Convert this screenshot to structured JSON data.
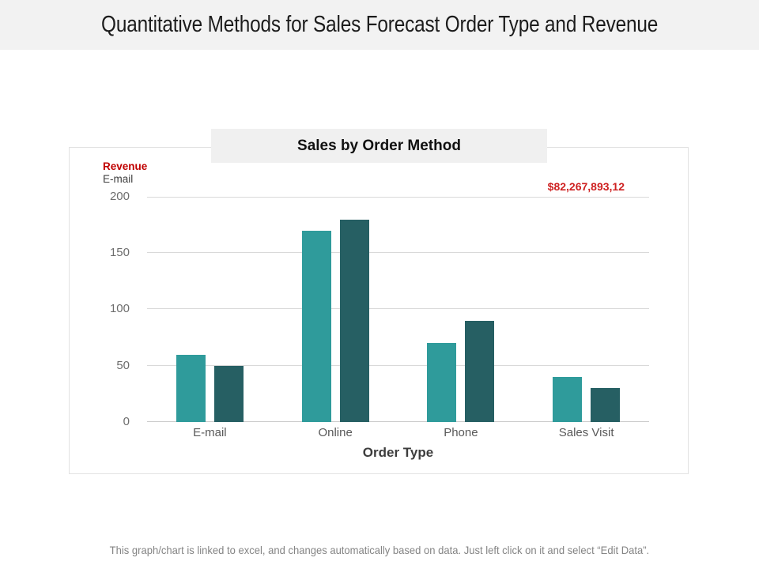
{
  "slide": {
    "title": "Quantitative Methods for Sales Forecast Order Type and Revenue",
    "footer": "This graph/chart is linked to excel, and changes automatically based on data. Just left click on it and select “Edit Data”."
  },
  "chart": {
    "title": "Sales by Order Method",
    "legend": {
      "primary": "Revenue",
      "secondary": "E-mail"
    },
    "value_callout": "$82,267,893,12",
    "x_axis_title": "Order Type"
  },
  "chart_data": {
    "type": "bar",
    "title": "Sales by Order Method",
    "categories": [
      "E-mail",
      "Online",
      "Phone",
      "Sales Visit"
    ],
    "series": [
      {
        "name": "Teal",
        "color": "#2f9b9b",
        "values": [
          60,
          170,
          70,
          40
        ]
      },
      {
        "name": "Dark teal",
        "color": "#265f63",
        "values": [
          50,
          180,
          90,
          30
        ]
      }
    ],
    "xlabel": "Order Type",
    "ylabel": "Revenue",
    "ylim": [
      0,
      200
    ],
    "yticks": [
      0,
      50,
      100,
      150,
      200
    ],
    "grid": true,
    "legend_position": "top-left"
  },
  "colors": {
    "header_bg": "#f2f2f2",
    "chart_title_bg": "#f0f0f0",
    "revenue_red": "#c00000",
    "callout_red": "#ce2121",
    "bar_teal": "#2f9b9b",
    "bar_dark_teal": "#265f63",
    "gridline": "#d9d9d9"
  }
}
